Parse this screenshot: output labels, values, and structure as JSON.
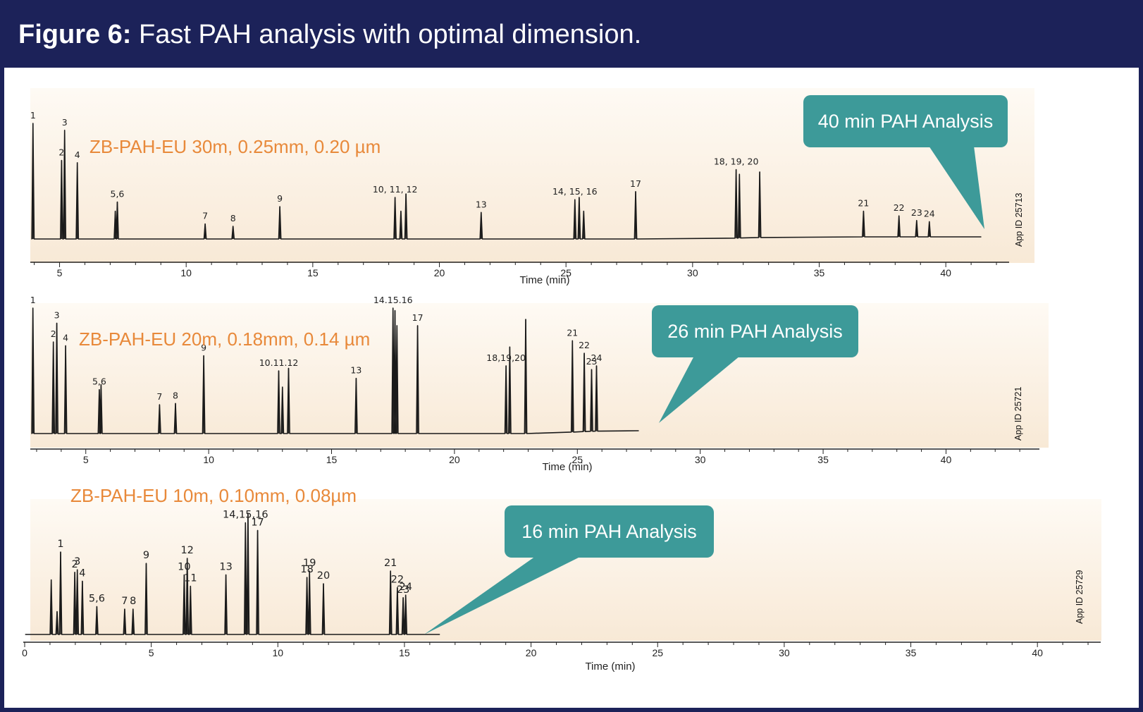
{
  "figure": {
    "label": "Figure 6:",
    "caption": "Fast PAH analysis with optimal dimension."
  },
  "colors": {
    "navy": "#1c2259",
    "orange": "#e8893a",
    "teal": "#3d9a99",
    "trace": "#1a1a1a",
    "panel_top": "#fefaf4",
    "panel_bottom": "#f8e9d6"
  },
  "chart_data": [
    {
      "type": "line",
      "title": "ZB-PAH-EU 30m, 0.25mm, 0.20 µm",
      "callout": "40 min PAH Analysis",
      "app_id": "App ID 25713",
      "xlabel": "Time (min)",
      "ylabel": "",
      "xlim": [
        3.9,
        42.5
      ],
      "ylim": [
        0,
        100
      ],
      "xticks": [
        5,
        10,
        15,
        20,
        25,
        30,
        35,
        40
      ],
      "end_time": 41.4,
      "peaks": [
        {
          "t": 3.95,
          "h": 100,
          "label": "1"
        },
        {
          "t": 5.08,
          "h": 68,
          "label": "2"
        },
        {
          "t": 5.2,
          "h": 94,
          "label": "3"
        },
        {
          "t": 5.7,
          "h": 66,
          "label": "4"
        },
        {
          "t": 7.2,
          "h": 24,
          "label": ""
        },
        {
          "t": 7.28,
          "h": 32,
          "label": "5,6"
        },
        {
          "t": 10.75,
          "h": 13,
          "label": "7"
        },
        {
          "t": 11.85,
          "h": 11,
          "label": "8"
        },
        {
          "t": 13.7,
          "h": 28,
          "label": "9"
        },
        {
          "t": 18.25,
          "h": 36,
          "label": "10, 11, 12"
        },
        {
          "t": 18.48,
          "h": 24,
          "label": ""
        },
        {
          "t": 18.68,
          "h": 39,
          "label": ""
        },
        {
          "t": 21.65,
          "h": 23,
          "label": "13"
        },
        {
          "t": 25.35,
          "h": 34,
          "label": "14, 15, 16"
        },
        {
          "t": 25.52,
          "h": 36,
          "label": ""
        },
        {
          "t": 25.7,
          "h": 24,
          "label": ""
        },
        {
          "t": 27.75,
          "h": 41,
          "label": "17"
        },
        {
          "t": 31.72,
          "h": 60,
          "label": "18, 19, 20"
        },
        {
          "t": 31.85,
          "h": 56,
          "label": ""
        },
        {
          "t": 32.65,
          "h": 58,
          "label": ""
        },
        {
          "t": 36.75,
          "h": 24,
          "label": "21"
        },
        {
          "t": 38.15,
          "h": 20,
          "label": "22"
        },
        {
          "t": 38.85,
          "h": 16,
          "label": "23"
        },
        {
          "t": 39.35,
          "h": 15,
          "label": "24"
        }
      ]
    },
    {
      "type": "line",
      "title": "ZB-PAH-EU 20m, 0.18mm, 0.14 µm",
      "callout": "26 min PAH Analysis",
      "app_id": "App ID 25721",
      "xlabel": "Time (min)",
      "ylabel": "",
      "xlim": [
        2.8,
        43.8
      ],
      "ylim": [
        0,
        100
      ],
      "xticks": [
        5,
        10,
        15,
        20,
        25,
        30,
        35,
        40
      ],
      "end_time": 27.5,
      "peaks": [
        {
          "t": 2.85,
          "h": 100,
          "label": "1"
        },
        {
          "t": 3.68,
          "h": 73,
          "label": "2"
        },
        {
          "t": 3.82,
          "h": 88,
          "label": "3"
        },
        {
          "t": 4.18,
          "h": 70,
          "label": "4"
        },
        {
          "t": 5.55,
          "h": 35,
          "label": "5,6"
        },
        {
          "t": 5.62,
          "h": 39,
          "label": ""
        },
        {
          "t": 8.0,
          "h": 23,
          "label": "7"
        },
        {
          "t": 8.65,
          "h": 24,
          "label": "8"
        },
        {
          "t": 9.8,
          "h": 62,
          "label": "9"
        },
        {
          "t": 12.85,
          "h": 50,
          "label": "10.11.12"
        },
        {
          "t": 13.0,
          "h": 37,
          "label": ""
        },
        {
          "t": 13.25,
          "h": 52,
          "label": ""
        },
        {
          "t": 16.0,
          "h": 44,
          "label": "13"
        },
        {
          "t": 17.5,
          "h": 100,
          "label": "14.15.16"
        },
        {
          "t": 17.58,
          "h": 98,
          "label": ""
        },
        {
          "t": 17.66,
          "h": 86,
          "label": ""
        },
        {
          "t": 18.5,
          "h": 86,
          "label": "17"
        },
        {
          "t": 22.1,
          "h": 54,
          "label": "18,19,20"
        },
        {
          "t": 22.25,
          "h": 69,
          "label": ""
        },
        {
          "t": 22.9,
          "h": 91,
          "label": ""
        },
        {
          "t": 24.8,
          "h": 74,
          "label": "21"
        },
        {
          "t": 25.28,
          "h": 64,
          "label": "22"
        },
        {
          "t": 25.58,
          "h": 51,
          "label": "23"
        },
        {
          "t": 25.78,
          "h": 54,
          "label": "24"
        }
      ]
    },
    {
      "type": "line",
      "title": "ZB-PAH-EU 10m, 0.10mm, 0.08µm",
      "callout": "16 min PAH Analysis",
      "app_id": "App ID 25729",
      "xlabel": "Time (min)",
      "ylabel": "",
      "xlim": [
        0,
        42.5
      ],
      "ylim": [
        0,
        100
      ],
      "xticks": [
        0,
        5,
        10,
        15,
        20,
        25,
        30,
        35,
        40
      ],
      "end_time": 16.4,
      "peaks": [
        {
          "t": 1.05,
          "h": 43,
          "label": ""
        },
        {
          "t": 1.28,
          "h": 18,
          "label": ""
        },
        {
          "t": 1.42,
          "h": 65,
          "label": "1"
        },
        {
          "t": 1.98,
          "h": 49,
          "label": "2"
        },
        {
          "t": 2.08,
          "h": 51,
          "label": "3"
        },
        {
          "t": 2.28,
          "h": 42,
          "label": "4"
        },
        {
          "t": 2.85,
          "h": 22,
          "label": "5,6"
        },
        {
          "t": 3.95,
          "h": 20,
          "label": "7"
        },
        {
          "t": 4.28,
          "h": 20,
          "label": "8"
        },
        {
          "t": 4.8,
          "h": 56,
          "label": "9"
        },
        {
          "t": 6.3,
          "h": 47,
          "label": "10"
        },
        {
          "t": 6.42,
          "h": 60,
          "label": "12"
        },
        {
          "t": 6.55,
          "h": 38,
          "label": "11"
        },
        {
          "t": 7.95,
          "h": 47,
          "label": "13"
        },
        {
          "t": 8.72,
          "h": 88,
          "label": "14,15,16"
        },
        {
          "t": 8.82,
          "h": 95,
          "label": ""
        },
        {
          "t": 9.2,
          "h": 82,
          "label": "17"
        },
        {
          "t": 11.15,
          "h": 45,
          "label": "18"
        },
        {
          "t": 11.25,
          "h": 50,
          "label": "19"
        },
        {
          "t": 11.8,
          "h": 40,
          "label": "20"
        },
        {
          "t": 14.45,
          "h": 50,
          "label": "21"
        },
        {
          "t": 14.72,
          "h": 37,
          "label": "22"
        },
        {
          "t": 14.95,
          "h": 29,
          "label": "23"
        },
        {
          "t": 15.05,
          "h": 31,
          "label": "24"
        }
      ]
    }
  ]
}
